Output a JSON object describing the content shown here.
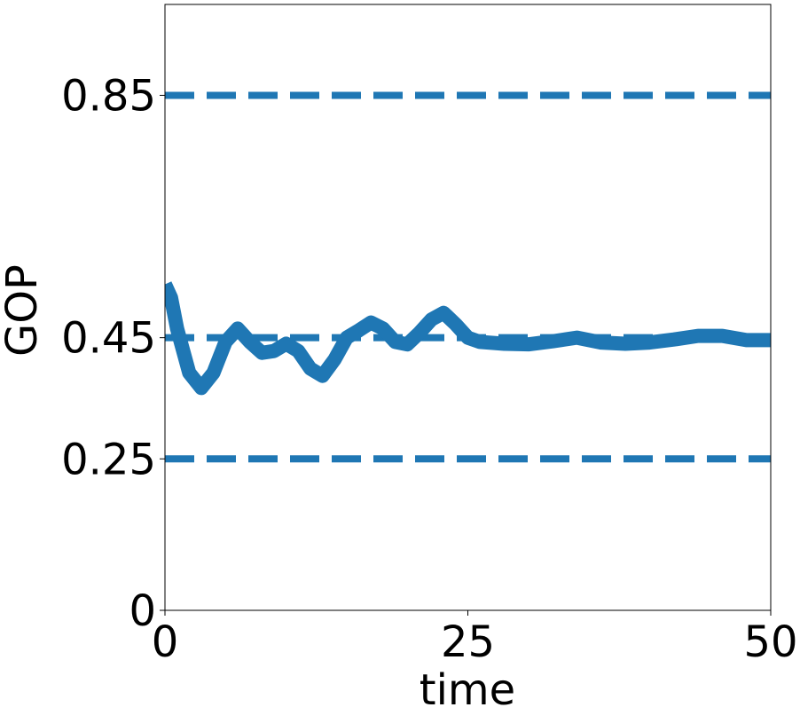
{
  "chart_data": {
    "type": "line",
    "x_label": "time",
    "y_label": "GOP",
    "x": [
      0,
      0.5,
      1,
      2,
      3,
      4,
      5,
      6,
      7,
      8,
      9,
      10,
      11,
      12,
      13,
      14,
      15,
      16,
      17,
      18,
      19,
      20,
      21,
      22,
      23,
      24,
      25,
      26,
      28,
      30,
      32,
      34,
      36,
      38,
      40,
      42,
      44,
      46,
      48,
      50
    ],
    "series": [
      {
        "color": "#1f77b4",
        "values": [
          0.538,
          0.516,
          0.465,
          0.392,
          0.367,
          0.392,
          0.443,
          0.465,
          0.443,
          0.425,
          0.428,
          0.44,
          0.428,
          0.399,
          0.387,
          0.414,
          0.45,
          0.462,
          0.475,
          0.465,
          0.443,
          0.439,
          0.458,
          0.48,
          0.491,
          0.472,
          0.45,
          0.443,
          0.44,
          0.439,
          0.444,
          0.45,
          0.442,
          0.44,
          0.442,
          0.447,
          0.453,
          0.453,
          0.446,
          0.446
        ]
      }
    ],
    "reference_lines": {
      "color": "#1f77b4",
      "values": [
        0.85,
        0.45,
        0.25
      ]
    },
    "xlim": [
      0,
      50
    ],
    "xticks": [
      0,
      25,
      50
    ],
    "ylim": [
      0,
      1
    ],
    "yticks": [
      0,
      0.25,
      0.45,
      0.85
    ]
  }
}
